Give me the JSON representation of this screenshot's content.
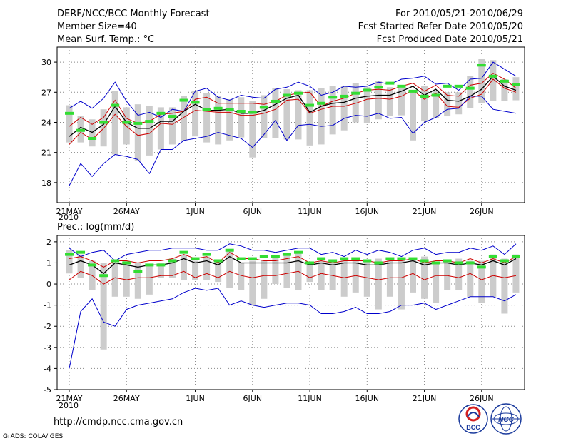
{
  "header": {
    "title": "DERF/NCC/BCC Monthly Forecast",
    "member_size": "Member Size=40",
    "variable": "Mean Surf. Temp.: °C",
    "forecast_period": "For 2010/05/21-2010/06/29",
    "fcst_started": "Fcst Started Refer Date 2010/05/20",
    "fcst_produced": "Fcst Produced Date 2010/05/21"
  },
  "bottom_panel_label": "Prec.: log(mm/d)",
  "x_tick_labels": [
    "21MAY",
    "26MAY",
    "1JUN",
    "6JUN",
    "11JUN",
    "16JUN",
    "21JUN",
    "26JUN"
  ],
  "x_year_label": "2010",
  "footer": {
    "url": "http://cmdp.ncc.cma.gov.cn",
    "credit": "GrADS: COLA/IGES",
    "logo_bcc_text": "BCC",
    "logo_ncc_text": "NCC"
  },
  "colors": {
    "ensemble_range": "#0000cc",
    "spread": "#cc0000",
    "mean": "#000000",
    "observed": "#33dd33",
    "member_box": "#cccccc"
  },
  "chart_data": [
    {
      "type": "line",
      "title": "Mean Surf. Temp.: °C",
      "x_start": "2010-05-21",
      "days": 40,
      "ylim": [
        16,
        31.5
      ],
      "yticks": [
        18,
        21,
        24,
        27,
        30
      ],
      "series": [
        {
          "name": "max",
          "color": "#0000cc",
          "values": [
            25.4,
            26.1,
            25.4,
            26.4,
            28.0,
            26.1,
            24.7,
            25.0,
            24.5,
            25.3,
            25.1,
            27.1,
            27.4,
            26.5,
            26.2,
            26.7,
            26.5,
            26.4,
            27.3,
            27.5,
            28.0,
            27.6,
            26.7,
            27.0,
            27.6,
            27.5,
            27.6,
            28.0,
            27.8,
            28.3,
            28.4,
            28.6,
            27.8,
            27.9,
            27.2,
            28.3,
            28.4,
            30.0,
            29.3,
            28.6
          ]
        },
        {
          "name": "spread_upper",
          "color": "#cc0000",
          "values": [
            23.6,
            24.5,
            23.8,
            24.5,
            26.2,
            24.4,
            23.9,
            24.1,
            24.8,
            24.9,
            25.1,
            26.3,
            26.5,
            25.9,
            25.9,
            25.9,
            25.9,
            25.8,
            26.1,
            26.7,
            26.9,
            27.0,
            25.6,
            26.1,
            26.4,
            26.9,
            27.2,
            27.3,
            27.2,
            27.6,
            27.9,
            27.1,
            27.7,
            26.7,
            26.6,
            27.7,
            27.9,
            28.9,
            28.3,
            27.4
          ]
        },
        {
          "name": "mean",
          "color": "#000000",
          "values": [
            22.6,
            23.5,
            23.0,
            23.8,
            25.6,
            24.0,
            23.4,
            23.4,
            24.1,
            24.1,
            25.1,
            25.8,
            25.2,
            25.2,
            25.3,
            24.9,
            24.9,
            25.2,
            25.8,
            26.4,
            26.7,
            25.0,
            25.6,
            25.9,
            26.0,
            26.4,
            26.6,
            26.7,
            26.7,
            27.1,
            27.6,
            26.7,
            27.3,
            26.2,
            26.1,
            26.6,
            27.3,
            28.6,
            27.6,
            27.2
          ]
        },
        {
          "name": "spread_lower",
          "color": "#cc0000",
          "values": [
            21.8,
            23.0,
            22.3,
            23.4,
            24.8,
            23.6,
            22.7,
            22.9,
            23.9,
            23.8,
            24.5,
            25.2,
            25.1,
            25.0,
            25.0,
            24.7,
            24.7,
            24.9,
            25.3,
            26.2,
            26.3,
            24.9,
            25.3,
            25.6,
            25.6,
            25.9,
            26.3,
            26.4,
            26.3,
            26.6,
            27.2,
            26.3,
            26.9,
            25.6,
            25.5,
            26.4,
            26.8,
            28.3,
            27.4,
            27.0
          ]
        },
        {
          "name": "min",
          "color": "#0000cc",
          "values": [
            17.7,
            19.9,
            18.6,
            19.9,
            20.8,
            20.6,
            20.3,
            18.9,
            21.3,
            21.3,
            22.2,
            22.4,
            22.6,
            23.0,
            22.7,
            22.4,
            21.5,
            22.8,
            24.2,
            22.2,
            23.7,
            23.8,
            23.6,
            23.7,
            24.4,
            24.7,
            24.6,
            24.9,
            24.4,
            24.5,
            22.9,
            24.0,
            24.5,
            25.3,
            25.4,
            26.6,
            26.6,
            25.3,
            25.1,
            24.9
          ]
        },
        {
          "name": "observed",
          "color": "#33dd33",
          "values": [
            24.9,
            23.2,
            22.4,
            24.0,
            25.7,
            24.0,
            23.9,
            24.1,
            24.9,
            24.6,
            26.2,
            26.0,
            25.3,
            25.4,
            25.3,
            25.1,
            25.0,
            25.5,
            26.1,
            26.7,
            26.9,
            25.7,
            25.9,
            26.5,
            26.6,
            26.9,
            27.2,
            27.5,
            27.9,
            27.6,
            27.1,
            26.6,
            26.7,
            27.6,
            27.6,
            27.4,
            29.7,
            28.6,
            28.1,
            27.8
          ]
        }
      ],
      "boxes": {
        "top": [
          25.7,
          24.6,
          24.3,
          25.3,
          27.1,
          25.5,
          25.8,
          25.6,
          25.5,
          25.5,
          26.6,
          27.1,
          26.9,
          26.6,
          26.3,
          26.5,
          26.1,
          26.7,
          27.4,
          27.3,
          27.2,
          27.2,
          27.4,
          27.6,
          27.6,
          27.9,
          27.5,
          28.1,
          27.5,
          27.4,
          27.0,
          27.6,
          27.2,
          27.0,
          27.0,
          28.6,
          30.3,
          30.2,
          28.3,
          28.5
        ],
        "bottom": [
          22.0,
          22.0,
          21.6,
          21.6,
          20.8,
          21.8,
          20.2,
          20.7,
          21.3,
          21.8,
          22.2,
          22.6,
          22.0,
          21.8,
          22.2,
          22.5,
          20.5,
          22.4,
          22.4,
          22.3,
          22.3,
          21.7,
          21.8,
          22.8,
          23.2,
          24.0,
          23.9,
          24.3,
          24.6,
          24.7,
          22.2,
          24.1,
          24.4,
          24.6,
          24.8,
          25.4,
          25.9,
          26.1,
          26.1,
          26.2
        ]
      }
    },
    {
      "type": "line",
      "title": "Prec.: log(mm/d)",
      "x_start": "2010-05-21",
      "days": 40,
      "ylim": [
        -5,
        2.3
      ],
      "yticks": [
        -5,
        -4,
        -3,
        -2,
        -1,
        0,
        1,
        2
      ],
      "series": [
        {
          "name": "max",
          "color": "#0000cc",
          "values": [
            1.7,
            1.3,
            1.5,
            1.6,
            1.1,
            1.4,
            1.5,
            1.6,
            1.6,
            1.7,
            1.7,
            1.7,
            1.6,
            1.6,
            1.9,
            1.8,
            1.6,
            1.6,
            1.5,
            1.6,
            1.7,
            1.7,
            1.4,
            1.5,
            1.3,
            1.6,
            1.4,
            1.6,
            1.5,
            1.3,
            1.6,
            1.7,
            1.4,
            1.5,
            1.5,
            1.7,
            1.6,
            1.8,
            1.4,
            1.9
          ]
        },
        {
          "name": "spread_upper",
          "color": "#cc0000",
          "values": [
            1.2,
            1.3,
            1.1,
            0.8,
            1.1,
            1.1,
            1.0,
            1.1,
            1.1,
            1.2,
            1.4,
            1.2,
            1.3,
            1.0,
            1.5,
            1.2,
            1.2,
            1.1,
            1.1,
            1.2,
            1.3,
            1.0,
            1.1,
            1.0,
            1.1,
            1.1,
            1.1,
            1.0,
            1.1,
            1.1,
            1.2,
            1.0,
            1.1,
            1.1,
            1.0,
            1.2,
            1.0,
            1.2,
            1.0,
            1.3
          ]
        },
        {
          "name": "mean",
          "color": "#000000",
          "values": [
            0.9,
            1.1,
            0.9,
            0.5,
            1.0,
            0.9,
            0.8,
            0.9,
            0.9,
            1.0,
            1.2,
            1.0,
            1.1,
            0.9,
            1.3,
            1.0,
            1.0,
            1.0,
            1.0,
            1.0,
            1.1,
            0.9,
            1.0,
            0.9,
            1.0,
            1.0,
            0.9,
            0.9,
            1.0,
            1.0,
            1.1,
            0.9,
            1.0,
            1.0,
            0.9,
            1.0,
            0.9,
            1.1,
            0.9,
            1.2
          ]
        },
        {
          "name": "spread_lower",
          "color": "#cc0000",
          "values": [
            0.2,
            0.6,
            0.4,
            0.0,
            0.3,
            0.2,
            0.3,
            0.3,
            0.4,
            0.4,
            0.6,
            0.3,
            0.5,
            0.3,
            0.6,
            0.4,
            0.3,
            0.4,
            0.4,
            0.5,
            0.6,
            0.3,
            0.5,
            0.4,
            0.3,
            0.4,
            0.3,
            0.2,
            0.3,
            0.3,
            0.5,
            0.2,
            0.4,
            0.4,
            0.3,
            0.5,
            0.2,
            0.4,
            0.3,
            0.4
          ]
        },
        {
          "name": "min",
          "color": "#0000cc",
          "values": [
            -4.0,
            -1.3,
            -0.7,
            -1.8,
            -2.0,
            -1.2,
            -1.0,
            -0.9,
            -0.8,
            -0.7,
            -0.4,
            -0.2,
            -0.3,
            -0.2,
            -1.0,
            -0.8,
            -1.0,
            -1.1,
            -1.0,
            -0.9,
            -0.9,
            -1.0,
            -1.4,
            -1.4,
            -1.3,
            -1.1,
            -1.4,
            -1.4,
            -1.3,
            -1.0,
            -1.0,
            -0.9,
            -1.2,
            -1.0,
            -0.8,
            -0.6,
            -0.6,
            -0.6,
            -0.8,
            -0.5
          ]
        },
        {
          "name": "observed",
          "color": "#33dd33",
          "values": [
            1.4,
            1.5,
            0.9,
            0.4,
            1.1,
            1.0,
            0.6,
            0.9,
            0.9,
            1.1,
            1.5,
            1.2,
            1.4,
            1.1,
            1.6,
            1.2,
            1.2,
            1.3,
            1.3,
            1.4,
            1.5,
            1.0,
            1.2,
            1.1,
            1.2,
            1.2,
            1.1,
            1.0,
            1.2,
            1.2,
            1.2,
            1.1,
            1.0,
            1.1,
            1.0,
            1.0,
            0.8,
            1.3,
            1.1,
            1.3
          ]
        }
      ],
      "boxes": {
        "top": [
          1.6,
          1.4,
          1.1,
          1.0,
          1.0,
          1.1,
          1.0,
          0.9,
          1.0,
          1.2,
          1.4,
          1.1,
          1.3,
          1.1,
          1.6,
          1.0,
          1.1,
          1.1,
          1.3,
          1.4,
          1.5,
          1.0,
          1.1,
          1.1,
          1.2,
          1.2,
          1.1,
          1.2,
          1.2,
          1.2,
          1.2,
          1.3,
          1.0,
          1.1,
          1.2,
          1.1,
          1.1,
          1.4,
          1.2,
          1.4
        ],
        "bottom": [
          0.5,
          0.3,
          -0.3,
          -3.1,
          -0.6,
          -0.6,
          -0.7,
          -0.5,
          0.3,
          0.3,
          0.2,
          0.2,
          0.2,
          0.1,
          -0.2,
          -0.3,
          -1.0,
          -0.7,
          0.0,
          -0.2,
          -0.3,
          0.1,
          -0.3,
          -0.3,
          -0.6,
          -0.4,
          -0.6,
          -1.2,
          -0.6,
          -1.2,
          -0.4,
          -0.7,
          -0.9,
          -0.3,
          -0.3,
          -0.6,
          -0.9,
          -0.6,
          -1.4,
          -0.4
        ]
      }
    }
  ]
}
